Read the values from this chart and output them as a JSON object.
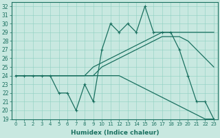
{
  "background_color": "#c8e8e0",
  "line_color": "#1a7060",
  "xlabel": "Humidex (Indice chaleur)",
  "xlim": [
    -0.5,
    23.5
  ],
  "ylim": [
    19,
    32.5
  ],
  "xticks": [
    0,
    1,
    2,
    3,
    4,
    5,
    6,
    7,
    8,
    9,
    10,
    11,
    12,
    13,
    14,
    15,
    16,
    17,
    18,
    19,
    20,
    21,
    22,
    23
  ],
  "yticks": [
    19,
    20,
    21,
    22,
    23,
    24,
    25,
    26,
    27,
    28,
    29,
    30,
    31,
    32
  ],
  "x": [
    0,
    1,
    2,
    3,
    4,
    5,
    6,
    7,
    8,
    9,
    10,
    11,
    12,
    13,
    14,
    15,
    16,
    17,
    18,
    19,
    20,
    21,
    22,
    23
  ],
  "line_zigzag": [
    24,
    24,
    24,
    24,
    24,
    22,
    22,
    20,
    23,
    21,
    27,
    30,
    29,
    30,
    29,
    32,
    29,
    29,
    29,
    27,
    24,
    21,
    21,
    19
  ],
  "line_up1": [
    24,
    24,
    24,
    24,
    24,
    24,
    24,
    24,
    24,
    25,
    25.5,
    26,
    26.5,
    27,
    27.5,
    28,
    28.5,
    29,
    29,
    29,
    29,
    29,
    29,
    29
  ],
  "line_up2": [
    24,
    24,
    24,
    24,
    24,
    24,
    24,
    24,
    24,
    24,
    25,
    25.5,
    26,
    26.5,
    27,
    27.5,
    28,
    28.5,
    28.5,
    28.5,
    28,
    27,
    26,
    25
  ],
  "line_down": [
    24,
    24,
    24,
    24,
    24,
    24,
    24,
    24,
    24,
    24,
    24,
    24,
    24,
    23.5,
    23,
    22.5,
    22,
    21.5,
    21,
    20.5,
    20,
    19.5,
    19,
    19
  ]
}
